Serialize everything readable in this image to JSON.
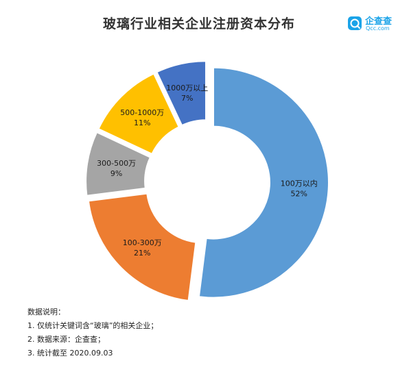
{
  "header": {
    "logo_name": "企查查",
    "logo_sub": "Qcc.com"
  },
  "chart_data": {
    "type": "pie",
    "title": "玻璃行业相关企业注册资本分布",
    "categories": [
      "100万以内",
      "100-300万",
      "300-500万",
      "500-1000万",
      "1000万以上"
    ],
    "values": [
      52,
      21,
      9,
      11,
      7
    ],
    "value_labels": [
      "52%",
      "21%",
      "9%",
      "11%",
      "7%"
    ],
    "colors": [
      "#5b9bd5",
      "#ed7d31",
      "#a5a5a5",
      "#ffc000",
      "#4472c4"
    ],
    "donut": true,
    "exploded": true
  },
  "notes": {
    "heading": "数据说明：",
    "items": [
      "1. 仅统计关键词含“玻璃”的相关企业；",
      "2. 数据来源：企查查；",
      "3. 统计截至 2020.09.03"
    ]
  }
}
